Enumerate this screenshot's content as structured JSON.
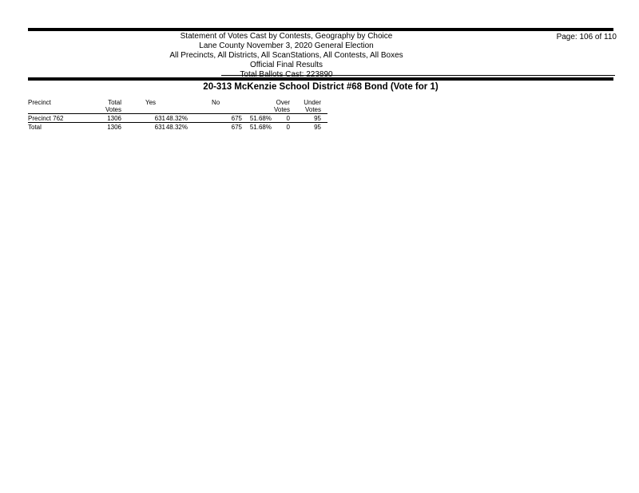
{
  "report_header": {
    "lines": [
      "Statement of Votes Cast by Contests, Geography by Choice",
      "Lane County November 3, 2020 General Election",
      "All Precincts, All Districts, All ScanStations, All Contests, All Boxes",
      "Official Final Results",
      "Total Ballots Cast: 223890"
    ],
    "page_label": "Page: 106 of 110"
  },
  "contest": {
    "title": "20-313 McKenzie School District #68 Bond (Vote for 1)"
  },
  "results_table": {
    "headers": {
      "precinct": "Precinct",
      "total_line1": "Total",
      "total_line2": "Votes",
      "yes": "Yes",
      "no": "No",
      "over_line1": "Over",
      "over_line2": "Votes",
      "under_line1": "Under",
      "under_line2": "Votes"
    },
    "rows": [
      {
        "precinct": "Precinct 762",
        "total_votes": "1306",
        "yes_votes": "631",
        "yes_pct": "48.32%",
        "no_votes": "675",
        "no_pct": "51.68%",
        "over_votes": "0",
        "under_votes": "95"
      },
      {
        "precinct": "Total",
        "total_votes": "1306",
        "yes_votes": "631",
        "yes_pct": "48.32%",
        "no_votes": "675",
        "no_pct": "51.68%",
        "over_votes": "0",
        "under_votes": "95"
      }
    ]
  },
  "colors": {
    "text": "#000000",
    "background": "#ffffff",
    "rule": "#000000"
  }
}
